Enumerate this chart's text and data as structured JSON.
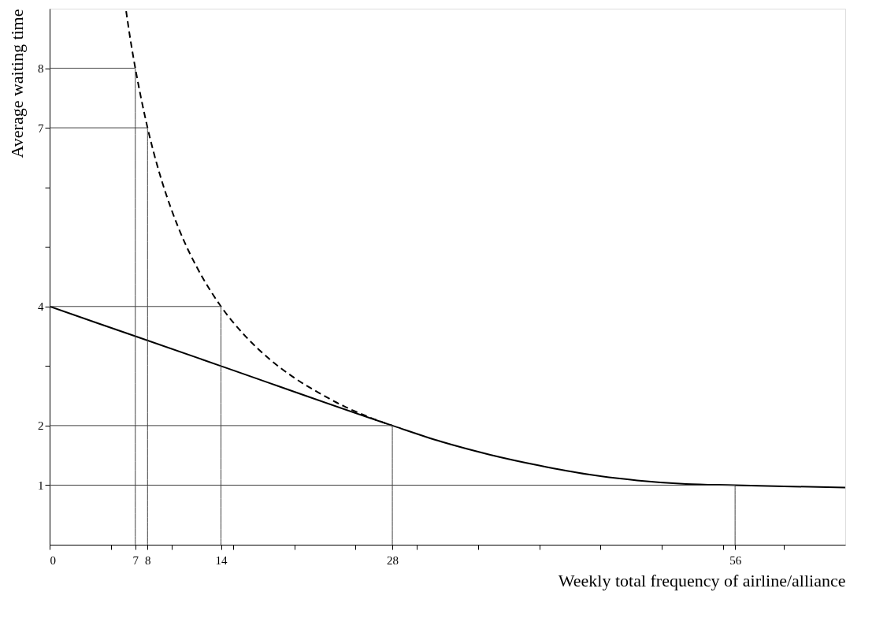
{
  "chart_data": {
    "type": "line",
    "xlabel": "Weekly total frequency of airline/alliance",
    "ylabel": "Average waiting time",
    "xlim": [
      0,
      65
    ],
    "ylim": [
      0,
      9
    ],
    "xticks": [
      0,
      {
        "value": 5,
        "label": null
      },
      7,
      8,
      {
        "value": 10,
        "label": null
      },
      14,
      {
        "value": 15,
        "label": null
      },
      {
        "value": 20,
        "label": null
      },
      {
        "value": 25,
        "label": null
      },
      28,
      {
        "value": 30,
        "label": null
      },
      {
        "value": 35,
        "label": null
      },
      {
        "value": 40,
        "label": null
      },
      {
        "value": 45,
        "label": null
      },
      {
        "value": 50,
        "label": null
      },
      {
        "value": 55,
        "label": null
      },
      56,
      {
        "value": 60,
        "label": null
      }
    ],
    "yticks": [
      1,
      2,
      {
        "value": 3,
        "label": null
      },
      4,
      {
        "value": 5,
        "label": null
      },
      {
        "value": 6,
        "label": null
      },
      7,
      8
    ],
    "grid": false,
    "marker": "none",
    "series": [
      {
        "color": "#000000",
        "line_style": "dashed",
        "x": [
          6.25,
          6.6,
          7,
          7.5,
          8,
          9,
          10,
          11,
          12,
          14,
          16,
          18,
          20,
          22,
          24,
          26,
          28
        ],
        "values": [
          8.96,
          8.48,
          8,
          7.47,
          7,
          6.22,
          5.6,
          5.09,
          4.67,
          4,
          3.5,
          3.11,
          2.8,
          2.55,
          2.33,
          2.15,
          2
        ]
      },
      {
        "color": "#000000",
        "line_style": "solid",
        "x": [
          0,
          7,
          14,
          28,
          32,
          36,
          40,
          44,
          48,
          52,
          56,
          60,
          65
        ],
        "values": [
          4,
          3.5,
          3,
          2,
          1.73,
          1.51,
          1.33,
          1.18,
          1.08,
          1.02,
          1,
          0.98,
          0.96
        ]
      },
      {
        "color": "#404040",
        "line_style": "solid",
        "x": [
          0,
          7,
          7
        ],
        "values": [
          8,
          8,
          0
        ]
      },
      {
        "color": "#404040",
        "line_style": "solid",
        "x": [
          0,
          8,
          8
        ],
        "values": [
          7,
          7,
          0
        ]
      },
      {
        "color": "#404040",
        "line_style": "solid",
        "x": [
          0,
          14,
          14
        ],
        "values": [
          4,
          4,
          0
        ]
      },
      {
        "color": "#404040",
        "line_style": "solid",
        "x": [
          0,
          28,
          28
        ],
        "values": [
          2,
          2,
          0
        ]
      },
      {
        "color": "#404040",
        "line_style": "solid",
        "x": [
          0,
          56,
          56
        ],
        "values": [
          1,
          1,
          0
        ]
      }
    ]
  }
}
